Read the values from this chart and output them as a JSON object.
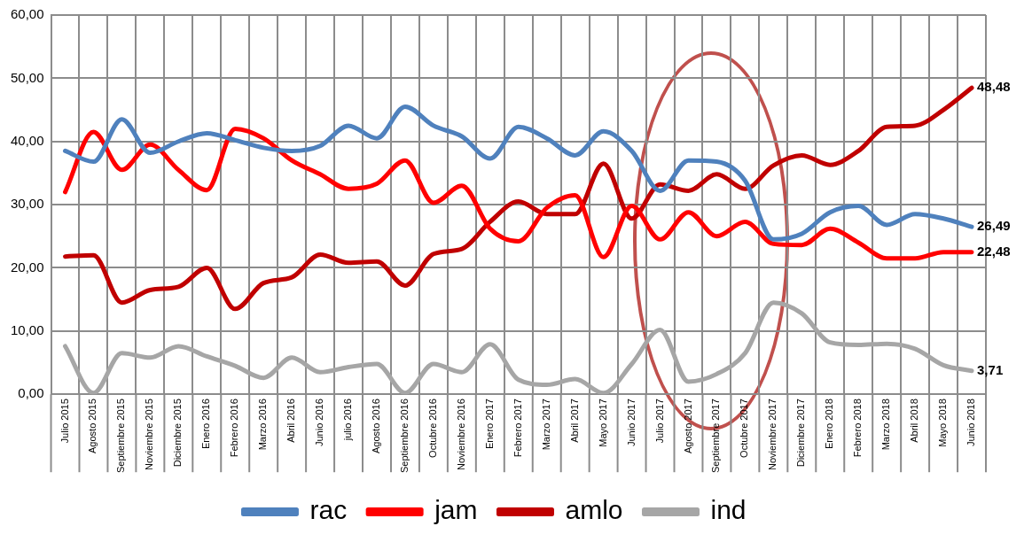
{
  "chart_data": {
    "type": "line",
    "categories": [
      "Julio 2015",
      "Agosto 2015",
      "Septiembre 2015",
      "Noviembre 2015",
      "Diciembre 2015",
      "Enero 2016",
      "Febrero 2016",
      "Marzo 2016",
      "Abril 2016",
      "Junio 2016",
      "julio 2016",
      "Agosto 2016",
      "Septiembre 2016",
      "Octubre 2016",
      "Noviembre 2016",
      "Enero 2017",
      "Febrero 2017",
      "Marzo 2017",
      "Abril 2017",
      "Mayo 2017",
      "Junio 2017",
      "Julio 2017",
      "Agosto 2017",
      "Septiembre 2017",
      "Octubre 2017",
      "Noviembre 2017",
      "Diciembre 2017",
      "Enero 2018",
      "Febrero 2018",
      "Marzo 2018",
      "Abril 2018",
      "Mayo 2018",
      "Junio 2018"
    ],
    "series": [
      {
        "name": "rac",
        "color": "#4f81bd",
        "values": [
          38.5,
          36.8,
          43.5,
          38.2,
          40.0,
          41.3,
          40.2,
          39.0,
          38.5,
          39.3,
          42.5,
          40.5,
          45.5,
          42.5,
          40.8,
          37.3,
          42.3,
          40.5,
          37.8,
          41.6,
          38.5,
          32.2,
          37.0,
          36.8,
          33.8,
          24.5,
          25.4,
          28.8,
          29.8,
          26.8,
          28.5,
          27.8,
          26.49
        ],
        "value_labels": [
          null,
          null,
          null,
          null,
          null,
          null,
          null,
          null,
          null,
          null,
          null,
          null,
          null,
          null,
          null,
          null,
          null,
          null,
          null,
          null,
          null,
          null,
          null,
          null,
          null,
          null,
          null,
          null,
          null,
          null,
          null,
          null,
          "26,49"
        ]
      },
      {
        "name": "jam",
        "color": "#ff0000",
        "values": [
          32.0,
          41.5,
          35.5,
          39.5,
          35.5,
          32.3,
          42.0,
          40.5,
          37.0,
          34.8,
          32.5,
          33.3,
          37.0,
          30.3,
          33.0,
          26.2,
          24.2,
          29.5,
          31.5,
          21.7,
          29.8,
          24.5,
          28.8,
          25.0,
          27.3,
          23.8,
          23.6,
          26.2,
          24.0,
          21.5,
          21.5,
          22.5,
          22.48
        ],
        "value_labels": [
          null,
          null,
          null,
          null,
          null,
          null,
          null,
          null,
          null,
          null,
          null,
          null,
          null,
          null,
          null,
          null,
          null,
          null,
          null,
          null,
          null,
          null,
          null,
          null,
          null,
          null,
          null,
          null,
          null,
          null,
          null,
          null,
          "22,48"
        ]
      },
      {
        "name": "amlo",
        "color": "#c00000",
        "values": [
          21.8,
          22.0,
          14.5,
          16.5,
          17.0,
          20.0,
          13.5,
          17.6,
          18.5,
          22.1,
          20.8,
          21.0,
          17.2,
          22.2,
          23.0,
          27.3,
          30.5,
          28.5,
          28.5,
          36.5,
          27.8,
          33.2,
          32.2,
          34.8,
          32.5,
          36.2,
          37.8,
          36.3,
          38.5,
          42.3,
          42.5,
          45.0,
          48.48
        ],
        "value_labels": [
          null,
          null,
          null,
          null,
          null,
          null,
          null,
          null,
          null,
          null,
          null,
          null,
          null,
          null,
          null,
          null,
          null,
          null,
          null,
          null,
          null,
          null,
          null,
          null,
          null,
          null,
          null,
          null,
          null,
          null,
          null,
          null,
          "48,48"
        ]
      },
      {
        "name": "ind",
        "color": "#a6a6a6",
        "values": [
          7.6,
          0.2,
          6.5,
          5.8,
          7.6,
          6.0,
          4.5,
          2.6,
          5.8,
          3.5,
          4.3,
          4.8,
          0.2,
          4.8,
          3.5,
          7.9,
          2.3,
          1.5,
          2.4,
          0.2,
          4.8,
          10.2,
          2.0,
          3.2,
          6.5,
          14.5,
          12.8,
          8.2,
          7.8,
          8.0,
          7.2,
          4.6,
          3.71
        ],
        "value_labels": [
          null,
          null,
          null,
          null,
          null,
          null,
          null,
          null,
          null,
          null,
          null,
          null,
          null,
          null,
          null,
          null,
          null,
          null,
          null,
          null,
          null,
          null,
          null,
          null,
          null,
          null,
          null,
          null,
          null,
          null,
          null,
          null,
          "3,71"
        ]
      }
    ],
    "ylim": [
      0,
      60
    ],
    "yticks": [
      {
        "value": 0,
        "label": "0,00"
      },
      {
        "value": 10,
        "label": "10,00"
      },
      {
        "value": 20,
        "label": "20,00"
      },
      {
        "value": 30,
        "label": "30,00"
      },
      {
        "value": 40,
        "label": "40,00"
      },
      {
        "value": 50,
        "label": "50,00"
      },
      {
        "value": 60,
        "label": "60,00"
      }
    ],
    "grid": true,
    "legend": "bottom",
    "marker": "none",
    "line_style": "solid"
  }
}
